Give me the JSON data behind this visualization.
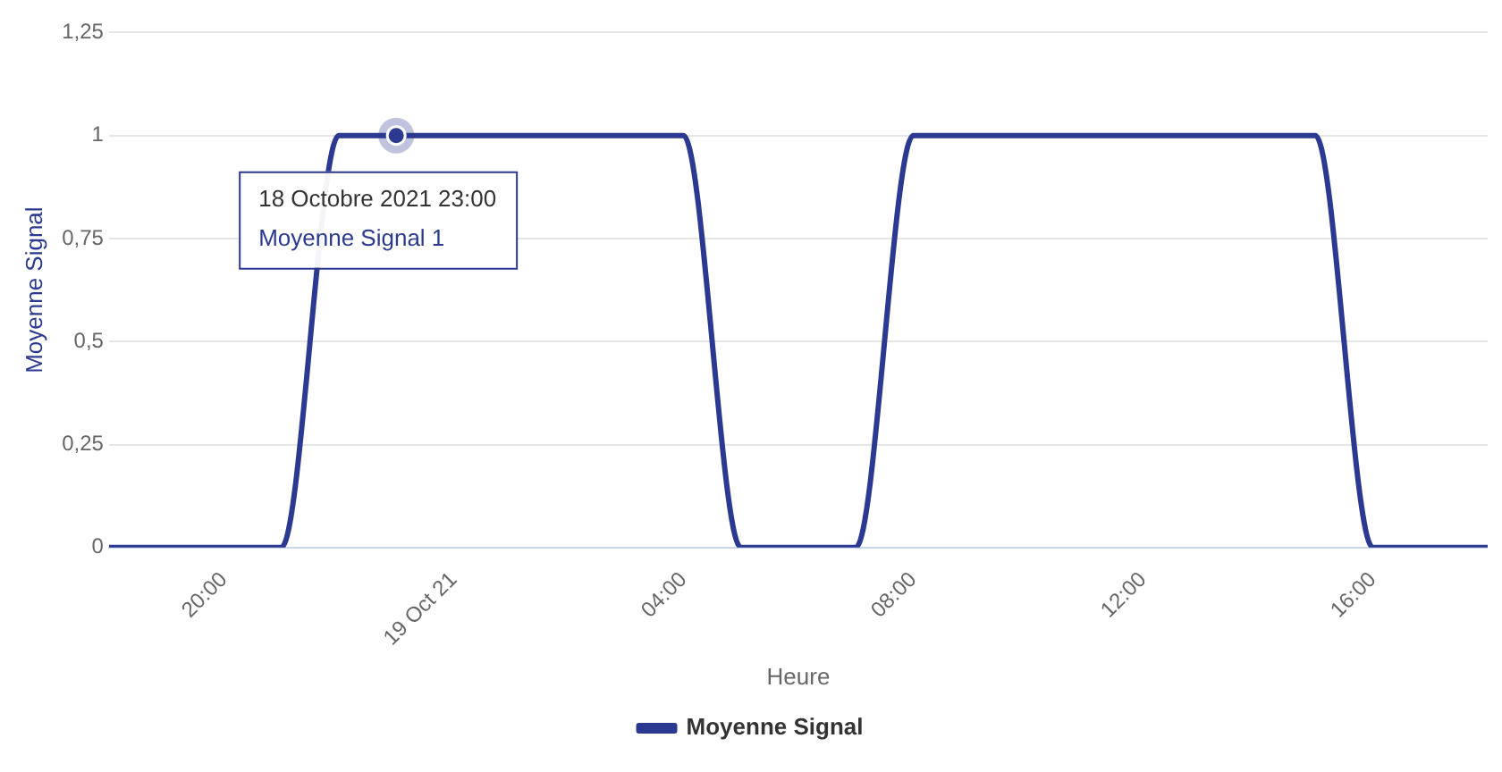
{
  "chart_data": {
    "type": "line",
    "xlabel": "Heure",
    "ylabel": "Moyenne Signal",
    "x": [
      "2021-10-18T18:00",
      "2021-10-18T19:00",
      "2021-10-18T20:00",
      "2021-10-18T21:00",
      "2021-10-18T22:00",
      "2021-10-18T23:00",
      "2021-10-19T00:00",
      "2021-10-19T01:00",
      "2021-10-19T02:00",
      "2021-10-19T03:00",
      "2021-10-19T04:00",
      "2021-10-19T05:00",
      "2021-10-19T06:00",
      "2021-10-19T07:00",
      "2021-10-19T08:00",
      "2021-10-19T09:00",
      "2021-10-19T10:00",
      "2021-10-19T11:00",
      "2021-10-19T12:00",
      "2021-10-19T13:00",
      "2021-10-19T14:00",
      "2021-10-19T15:00",
      "2021-10-19T16:00",
      "2021-10-19T17:00",
      "2021-10-19T18:00"
    ],
    "series": [
      {
        "name": "Moyenne Signal",
        "color": "#2b3990",
        "values": [
          0,
          0,
          0,
          0,
          1,
          1,
          1,
          1,
          1,
          1,
          1,
          0,
          0,
          0,
          1,
          1,
          1,
          1,
          1,
          1,
          1,
          1,
          0,
          0,
          0
        ]
      }
    ],
    "xlim": [
      "2021-10-18T18:00",
      "2021-10-19T18:00"
    ],
    "xticks": [
      {
        "value": "2021-10-18T20:00",
        "label": "20:00"
      },
      {
        "value": "2021-10-19T00:00",
        "label": "19 Oct 21"
      },
      {
        "value": "2021-10-19T04:00",
        "label": "04:00"
      },
      {
        "value": "2021-10-19T08:00",
        "label": "08:00"
      },
      {
        "value": "2021-10-19T12:00",
        "label": "12:00"
      },
      {
        "value": "2021-10-19T16:00",
        "label": "16:00"
      }
    ],
    "ylim": [
      0,
      1.25
    ],
    "yticks": [
      0,
      {
        "value": 0.25,
        "label": "0,25"
      },
      {
        "value": 0.5,
        "label": "0,5"
      },
      {
        "value": 0.75,
        "label": "0,75"
      },
      1,
      {
        "value": 1.25,
        "label": "1,25"
      }
    ],
    "grid": "y",
    "legend": "bottom",
    "marker": "none",
    "line_style": "solid",
    "annotations": [
      {
        "text": "18 Octobre 2021 23:00\nMoyenne Signal 1",
        "x": "2021-10-18T23:00",
        "y": 1
      }
    ]
  }
}
